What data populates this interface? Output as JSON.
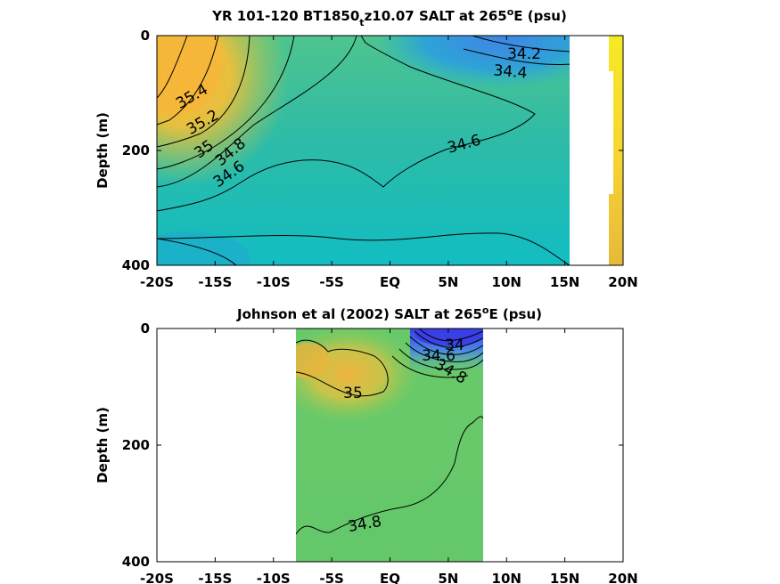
{
  "chart_data": [
    {
      "type": "contour",
      "title_pre": "YR 101-120 BT1850",
      "title_sub": "t",
      "title_mid": "z10.07 SALT at 265",
      "title_sup": "o",
      "title_post": "E (psu)",
      "ylabel": "Depth (m)",
      "xlim": [
        -20,
        20
      ],
      "ylim": [
        0,
        400
      ],
      "y_reversed": true,
      "x_ticks": [
        "-20S",
        "-15S",
        "-10S",
        "-5S",
        "EQ",
        "5N",
        "10N",
        "15N",
        "20N"
      ],
      "y_ticks": [
        "0",
        "200",
        "400"
      ],
      "contour_labels": [
        "35.4",
        "35.2",
        "35",
        "34.8",
        "34.6",
        "34.6",
        "34.4",
        "34.2"
      ],
      "data_extent_lat": [
        -20,
        15.3
      ],
      "colors": {
        "fresh": "#3f7ce0",
        "mid": "#1fc0b0",
        "salty": "#f5b63a"
      }
    },
    {
      "type": "contour",
      "title_pre": "Johnson et al (2002) SALT at 265",
      "title_sup": "o",
      "title_post": "E (psu)",
      "ylabel": "Depth (m)",
      "xlim": [
        -20,
        20
      ],
      "ylim": [
        0,
        400
      ],
      "y_reversed": true,
      "x_ticks": [
        "-20S",
        "-15S",
        "-10S",
        "-5S",
        "EQ",
        "5N",
        "10N",
        "15N",
        "20N"
      ],
      "y_ticks": [
        "0",
        "200",
        "400"
      ],
      "contour_labels": [
        "35",
        "34.8",
        "34.6",
        "34.8",
        "34"
      ],
      "data_extent_lat": [
        -8,
        8
      ],
      "colors": {
        "fresh": "#3a40e0",
        "mid": "#6bcb6a",
        "salty": "#f5b63a"
      }
    }
  ]
}
